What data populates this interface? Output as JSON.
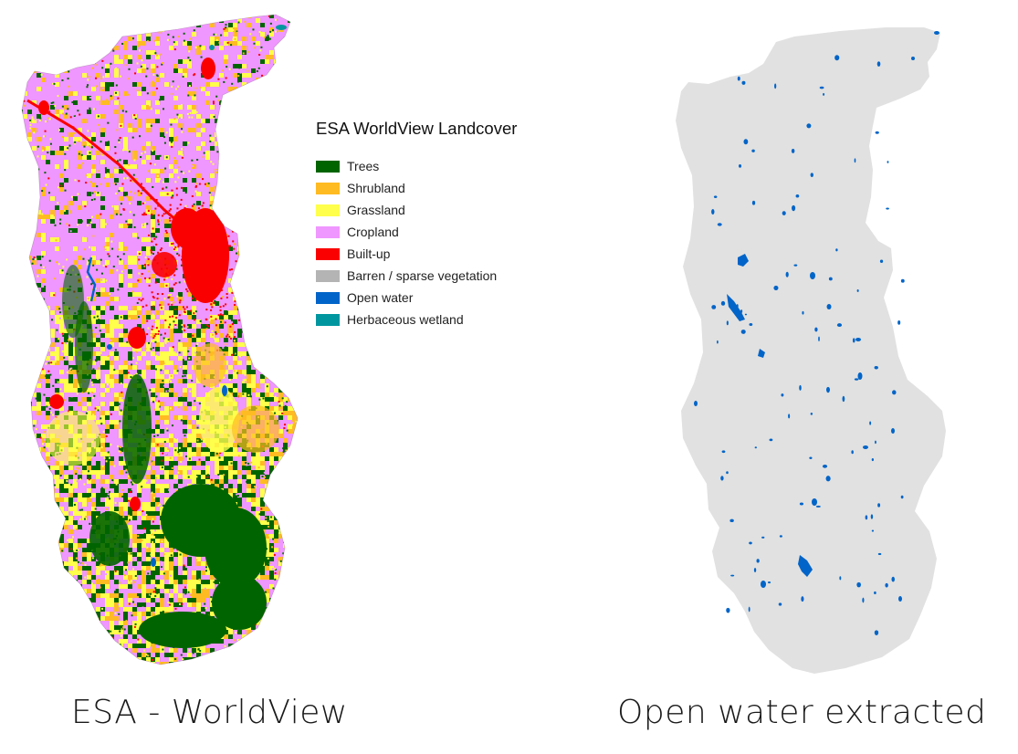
{
  "left_panel": {
    "caption": "ESA - WorldView",
    "legend": {
      "title": "ESA WorldView Landcover",
      "items": [
        {
          "label": "Trees",
          "color": "#006400"
        },
        {
          "label": "Shrubland",
          "color": "#ffbb22"
        },
        {
          "label": "Grassland",
          "color": "#ffff4c"
        },
        {
          "label": "Cropland",
          "color": "#f096ff"
        },
        {
          "label": "Built-up",
          "color": "#fa0000"
        },
        {
          "label": "Barren / sparse vegetation",
          "color": "#b4b4b4"
        },
        {
          "label": "Open water",
          "color": "#0064c8"
        },
        {
          "label": "Herbaceous wetland",
          "color": "#0096a0"
        }
      ]
    }
  },
  "right_panel": {
    "caption": "Open water extracted",
    "background_color": "#e1e1e1",
    "water_color": "#0064c8"
  }
}
